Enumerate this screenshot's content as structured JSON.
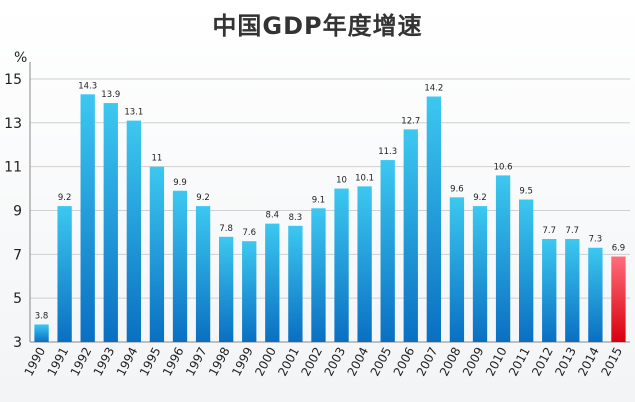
{
  "chart_data": {
    "type": "bar",
    "title": "中国GDP年度增速",
    "ylabel": "%",
    "xlabel": "",
    "ylim": [
      3,
      15.5
    ],
    "yticks": [
      3,
      5,
      7,
      9,
      11,
      13,
      15
    ],
    "grid": true,
    "categories": [
      "1990",
      "1991",
      "1992",
      "1993",
      "1994",
      "1995",
      "1996",
      "1997",
      "1998",
      "1999",
      "2000",
      "2001",
      "2002",
      "2003",
      "2004",
      "2005",
      "2006",
      "2007",
      "2008",
      "2009",
      "2010",
      "2011",
      "2012",
      "2013",
      "2014",
      "2015"
    ],
    "values": [
      3.8,
      9.2,
      14.3,
      13.9,
      13.1,
      11,
      9.9,
      9.2,
      7.8,
      7.6,
      8.4,
      8.3,
      9.1,
      10,
      10.1,
      11.3,
      12.7,
      14.2,
      9.6,
      9.2,
      10.6,
      9.5,
      7.7,
      7.7,
      7.3,
      6.9
    ],
    "highlight_index": 25,
    "colors": {
      "bar_top": "#3cc8f0",
      "bar_bottom": "#0a6fc2",
      "highlight_top": "#ff6d7a",
      "highlight_bottom": "#d8000f",
      "highlight_label": "#e0101e"
    }
  }
}
